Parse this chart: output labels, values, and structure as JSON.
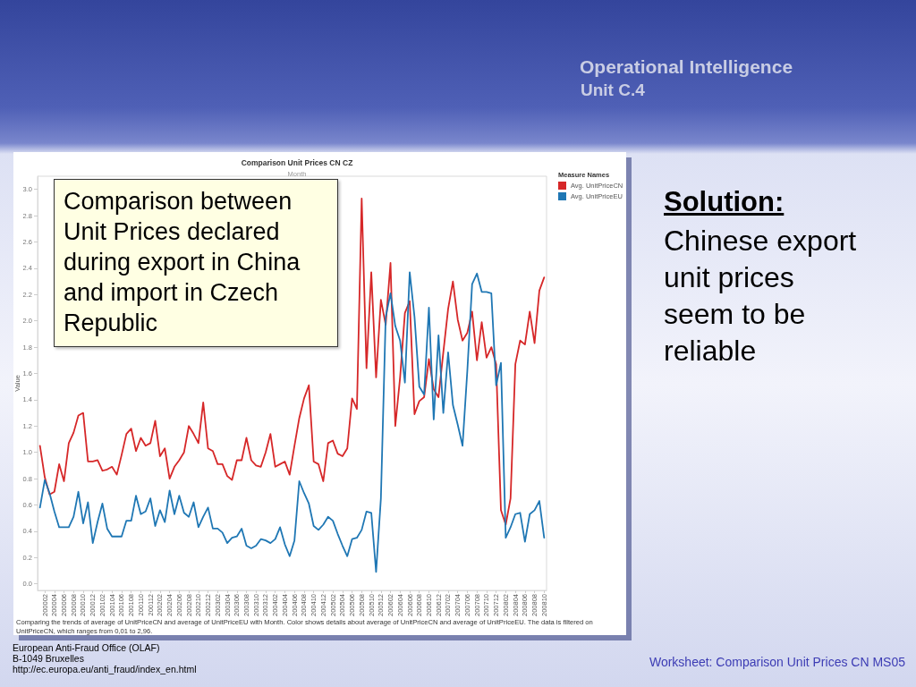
{
  "chart_data": {
    "type": "line",
    "title": "Comparison Unit Prices CN CZ",
    "xlabel": "Month",
    "ylabel": "Value",
    "legend_title": "Measure Names",
    "legend": "top right",
    "grid": false,
    "marker": "none",
    "categories": [
      null,
      "200002",
      null,
      "200004",
      null,
      "200006",
      null,
      "200008",
      null,
      "200010",
      null,
      "200012",
      null,
      "200102",
      null,
      "200104",
      null,
      "200106",
      null,
      "200108",
      null,
      "200110",
      null,
      "200112",
      null,
      "200202",
      null,
      "200204",
      null,
      "200206",
      null,
      "200208",
      null,
      "200210",
      null,
      "200212",
      null,
      "200302",
      null,
      "200304",
      null,
      "200306",
      null,
      "200308",
      null,
      "200310",
      null,
      "200312",
      null,
      "200402",
      null,
      "200404",
      null,
      "200406",
      null,
      "200408",
      null,
      "200410",
      null,
      "200412",
      null,
      "200502",
      null,
      "200504",
      null,
      "200506",
      null,
      "200508",
      null,
      "200510",
      null,
      "200512",
      null,
      "200602",
      null,
      "200604",
      null,
      "200606",
      null,
      "200608",
      null,
      "200610",
      null,
      "200612",
      null,
      "200702",
      null,
      "200704",
      null,
      "200706",
      null,
      "200708",
      null,
      "200710",
      null,
      "200712",
      null,
      "200802",
      null,
      "200804",
      null,
      "200806",
      null,
      "200808",
      null,
      "200810"
    ],
    "series": [
      {
        "name": "Avg. UnitPriceCN",
        "color": "#d62728",
        "values": [
          1.05,
          0.81,
          0.68,
          0.7,
          0.91,
          0.78,
          1.07,
          1.15,
          1.28,
          1.3,
          0.93,
          0.93,
          0.94,
          0.86,
          0.87,
          0.89,
          0.83,
          0.98,
          1.14,
          1.18,
          1.01,
          1.11,
          1.05,
          1.07,
          1.24,
          0.97,
          1.03,
          0.8,
          0.89,
          0.94,
          1.0,
          1.2,
          1.14,
          1.07,
          1.38,
          1.03,
          1.01,
          0.91,
          0.91,
          0.82,
          0.79,
          0.94,
          0.94,
          1.11,
          0.94,
          0.9,
          0.89,
          1.0,
          1.14,
          0.89,
          0.91,
          0.93,
          0.83,
          1.05,
          1.26,
          1.41,
          1.51,
          0.93,
          0.91,
          0.78,
          1.07,
          1.09,
          0.99,
          0.97,
          1.03,
          1.41,
          1.33,
          2.93,
          1.64,
          2.37,
          1.57,
          2.16,
          1.97,
          2.44,
          1.2,
          1.57,
          2.06,
          2.15,
          1.29,
          1.39,
          1.42,
          1.71,
          1.48,
          1.42,
          1.76,
          2.09,
          2.3,
          2.01,
          1.85,
          1.91,
          2.07,
          1.7,
          1.99,
          1.72,
          1.8,
          1.67,
          0.56,
          0.45,
          0.65,
          1.67,
          1.85,
          1.82,
          2.07,
          1.83,
          2.23,
          2.33
        ]
      },
      {
        "name": "Avg. UnitPriceEU",
        "color": "#1f77b4",
        "values": [
          0.58,
          0.79,
          0.69,
          0.55,
          0.43,
          0.43,
          0.43,
          0.51,
          0.7,
          0.46,
          0.62,
          0.31,
          0.47,
          0.61,
          0.42,
          0.36,
          0.36,
          0.36,
          0.48,
          0.48,
          0.67,
          0.53,
          0.55,
          0.65,
          0.44,
          0.56,
          0.47,
          0.71,
          0.53,
          0.67,
          0.54,
          0.51,
          0.62,
          0.43,
          0.51,
          0.58,
          0.42,
          0.42,
          0.39,
          0.31,
          0.35,
          0.36,
          0.42,
          0.29,
          0.27,
          0.29,
          0.34,
          0.33,
          0.31,
          0.34,
          0.43,
          0.3,
          0.21,
          0.33,
          0.78,
          0.69,
          0.61,
          0.44,
          0.41,
          0.45,
          0.51,
          0.48,
          0.38,
          0.29,
          0.21,
          0.34,
          0.35,
          0.41,
          0.55,
          0.54,
          0.09,
          0.65,
          2.03,
          2.21,
          1.96,
          1.85,
          1.53,
          2.37,
          2.03,
          1.5,
          1.44,
          2.1,
          1.25,
          1.89,
          1.3,
          1.76,
          1.36,
          1.21,
          1.05,
          1.62,
          2.28,
          2.36,
          2.22,
          2.22,
          2.21,
          1.51,
          1.68,
          0.35,
          0.43,
          0.53,
          0.54,
          0.32,
          0.53,
          0.56,
          0.63,
          0.35
        ]
      }
    ],
    "ylim": [
      -0.05,
      3.1
    ],
    "yticks": [
      {
        "value": 0,
        "label": "0.0"
      },
      0.2,
      0.4,
      0.6,
      0.8,
      {
        "value": 1,
        "label": "1.0"
      },
      1.2,
      1.4,
      1.6,
      1.8,
      {
        "value": 2,
        "label": "2.0"
      },
      2.2,
      2.4,
      2.6,
      2.8,
      {
        "value": 3,
        "label": "3.0"
      }
    ],
    "annotations": [
      "Operational Intelligence",
      "Unit C.4",
      "Comparison between Unit Prices declared during export in China and import in Czech Republic",
      "Solution:",
      "Chinese export unit prices seem to be reliable",
      "Comparing the trends of average of UnitPriceCN and average of UnitPriceEU with Month.  Color shows details about average of UnitPriceCN and average of UnitPriceEU. The data is filtered on UnitPriceCN, which ranges from 0,01 to 2,96.",
      "European Anti-Fraud Office (OLAF)",
      "B-1049 Bruxelles",
      "http://ec.europa.eu/anti_fraud/index_en.html",
      "Worksheet: Comparison Unit Prices CN MS05"
    ]
  }
}
